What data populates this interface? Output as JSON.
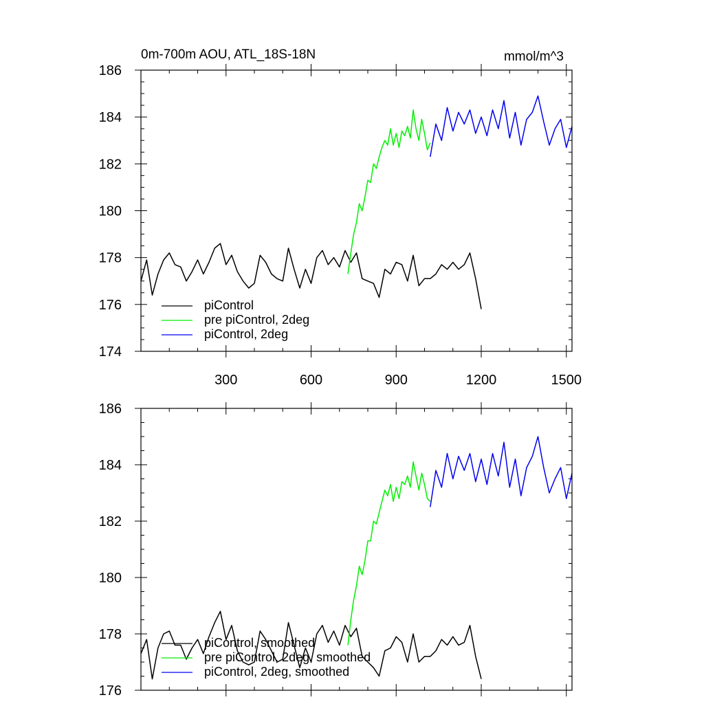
{
  "chart_data": [
    {
      "type": "line",
      "title": "0m-700m AOU, ATL_18S-18N",
      "units": "mmol/m^3",
      "xlim": [
        0,
        1520
      ],
      "ylim": [
        174,
        186
      ],
      "xticks": [
        300,
        600,
        900,
        1200,
        1500
      ],
      "xtick_labels": [
        "300",
        "600",
        "900",
        "1200",
        "1500"
      ],
      "yticks": [
        174,
        176,
        178,
        180,
        182,
        184,
        186
      ],
      "ytick_labels": [
        "174",
        "176",
        "178",
        "180",
        "182",
        "184",
        "186"
      ],
      "legend_position": "bottom-left",
      "series": [
        {
          "name": "piControl",
          "color": "#000000",
          "x": [
            0,
            20,
            40,
            60,
            80,
            100,
            120,
            140,
            160,
            180,
            200,
            220,
            240,
            260,
            280,
            300,
            320,
            340,
            360,
            380,
            400,
            420,
            440,
            460,
            480,
            500,
            520,
            540,
            560,
            580,
            600,
            620,
            640,
            660,
            680,
            700,
            720,
            740,
            760,
            780,
            800,
            820,
            840,
            860,
            880,
            900,
            920,
            940,
            960,
            980,
            1000,
            1020,
            1040,
            1060,
            1080,
            1100,
            1120,
            1140,
            1160,
            1180,
            1200
          ],
          "values": [
            177.0,
            177.9,
            176.4,
            177.3,
            177.9,
            178.2,
            177.7,
            177.6,
            177.0,
            177.4,
            177.9,
            177.3,
            177.8,
            178.4,
            178.6,
            177.7,
            178.1,
            177.4,
            177.0,
            176.7,
            176.9,
            178.1,
            177.8,
            177.3,
            177.1,
            177.0,
            178.4,
            177.5,
            176.7,
            177.5,
            176.9,
            178.0,
            178.3,
            177.7,
            178.0,
            177.6,
            178.3,
            177.8,
            178.2,
            177.1,
            177.0,
            176.9,
            176.3,
            177.5,
            177.3,
            177.8,
            177.7,
            177.0,
            178.1,
            176.8,
            177.1,
            177.1,
            177.3,
            177.7,
            177.5,
            177.8,
            177.5,
            177.7,
            178.2,
            177.1,
            175.8
          ]
        },
        {
          "name": "pre piControl, 2deg",
          "color": "#00ee00",
          "x": [
            730,
            740,
            750,
            760,
            770,
            780,
            790,
            800,
            810,
            820,
            830,
            840,
            850,
            860,
            870,
            880,
            890,
            900,
            910,
            920,
            930,
            940,
            950,
            960,
            970,
            980,
            990,
            1000,
            1010,
            1020
          ],
          "values": [
            177.3,
            178.2,
            179.0,
            179.5,
            180.3,
            180.0,
            180.6,
            181.3,
            181.2,
            182.0,
            181.8,
            182.3,
            182.7,
            183.0,
            182.8,
            183.5,
            182.8,
            183.3,
            182.7,
            183.4,
            183.2,
            183.6,
            183.1,
            184.3,
            183.5,
            183.0,
            183.9,
            183.3,
            182.6,
            182.9
          ]
        },
        {
          "name": "piControl, 2deg",
          "color": "#0000ee",
          "x": [
            1020,
            1040,
            1060,
            1080,
            1100,
            1120,
            1140,
            1160,
            1180,
            1200,
            1220,
            1240,
            1260,
            1280,
            1300,
            1320,
            1340,
            1360,
            1380,
            1400,
            1420,
            1440,
            1460,
            1480,
            1500,
            1520
          ],
          "values": [
            182.3,
            183.7,
            183.0,
            184.4,
            183.4,
            184.2,
            183.7,
            184.3,
            183.3,
            184.0,
            183.2,
            184.3,
            183.5,
            184.7,
            183.1,
            184.2,
            182.8,
            183.9,
            184.2,
            184.9,
            183.8,
            182.8,
            183.5,
            183.9,
            182.7,
            183.6
          ]
        }
      ]
    },
    {
      "type": "line",
      "title": "",
      "xlim": [
        0,
        1520
      ],
      "ylim": [
        176,
        186
      ],
      "xticks": [
        300,
        600,
        900,
        1200,
        1500
      ],
      "yticks": [
        176,
        178,
        180,
        182,
        184,
        186
      ],
      "ytick_labels": [
        "176",
        "178",
        "180",
        "182",
        "184",
        "186"
      ],
      "legend_position": "bottom-left",
      "series": [
        {
          "name": "piControl, smoothed",
          "color": "#000000",
          "x": [
            0,
            20,
            40,
            60,
            80,
            100,
            120,
            140,
            160,
            180,
            200,
            220,
            240,
            260,
            280,
            300,
            320,
            340,
            360,
            380,
            400,
            420,
            440,
            460,
            480,
            500,
            520,
            540,
            560,
            580,
            600,
            620,
            640,
            660,
            680,
            700,
            720,
            740,
            760,
            780,
            800,
            820,
            840,
            860,
            880,
            900,
            920,
            940,
            960,
            980,
            1000,
            1020,
            1040,
            1060,
            1080,
            1100,
            1120,
            1140,
            1160,
            1180,
            1200
          ],
          "values": [
            177.3,
            177.8,
            176.4,
            177.5,
            178.0,
            178.1,
            177.6,
            177.6,
            177.1,
            177.5,
            177.8,
            177.3,
            177.9,
            178.4,
            178.8,
            177.8,
            178.3,
            177.4,
            177.0,
            176.9,
            177.0,
            178.1,
            177.8,
            177.4,
            177.0,
            177.1,
            178.4,
            177.6,
            176.8,
            177.5,
            177.0,
            178.0,
            178.3,
            177.7,
            178.1,
            177.6,
            178.3,
            177.9,
            178.2,
            177.2,
            177.0,
            176.8,
            176.5,
            177.4,
            177.5,
            177.9,
            177.7,
            177.0,
            178.0,
            177.0,
            177.2,
            177.2,
            177.4,
            177.8,
            177.6,
            177.9,
            177.6,
            177.7,
            178.3,
            177.2,
            176.4
          ]
        },
        {
          "name": "pre piControl, 2deg, smoothed",
          "color": "#00ee00",
          "x": [
            730,
            740,
            750,
            760,
            770,
            780,
            790,
            800,
            810,
            820,
            830,
            840,
            850,
            860,
            870,
            880,
            890,
            900,
            910,
            920,
            930,
            940,
            950,
            960,
            970,
            980,
            990,
            1000,
            1010,
            1020
          ],
          "values": [
            177.6,
            178.5,
            179.2,
            179.7,
            180.4,
            180.1,
            180.6,
            181.3,
            181.3,
            182.0,
            181.9,
            182.3,
            182.7,
            183.1,
            182.9,
            183.3,
            182.7,
            183.2,
            182.8,
            183.4,
            183.3,
            183.6,
            183.2,
            184.1,
            183.6,
            183.1,
            183.7,
            183.3,
            182.8,
            182.7
          ]
        },
        {
          "name": "piControl, 2deg, smoothed",
          "color": "#0000ee",
          "x": [
            1020,
            1040,
            1060,
            1080,
            1100,
            1120,
            1140,
            1160,
            1180,
            1200,
            1220,
            1240,
            1260,
            1280,
            1300,
            1320,
            1340,
            1360,
            1380,
            1400,
            1420,
            1440,
            1460,
            1480,
            1500,
            1520
          ],
          "values": [
            182.5,
            183.8,
            183.2,
            184.4,
            183.5,
            184.3,
            183.8,
            184.4,
            183.4,
            184.2,
            183.3,
            184.4,
            183.6,
            184.8,
            183.2,
            184.2,
            182.9,
            183.9,
            184.3,
            185.0,
            183.9,
            183.0,
            183.5,
            183.9,
            182.8,
            183.7
          ]
        }
      ]
    }
  ]
}
